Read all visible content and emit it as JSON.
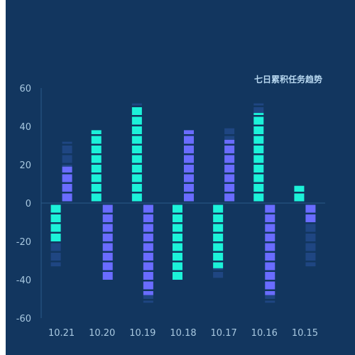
{
  "chart_data": {
    "type": "bar",
    "title": "七日累积任务趋势",
    "xlabel": "",
    "ylabel": "",
    "ylim": [
      -60,
      60
    ],
    "yticks": [
      60,
      40,
      20,
      0,
      -20,
      -40,
      -60
    ],
    "categories": [
      "10.21",
      "10.20",
      "10.19",
      "10.18",
      "10.17",
      "10.16",
      "10.15"
    ],
    "series": [
      {
        "color": "#1cf2d9",
        "values": [
          -20,
          38,
          50,
          -40,
          -34,
          47,
          9
        ],
        "track": [
          -33,
          38,
          52,
          -40,
          -39,
          52,
          9
        ]
      },
      {
        "color": "#6a6cff",
        "values": [
          19,
          -40,
          -48,
          38,
          33,
          -48,
          -10
        ],
        "track": [
          32,
          -40,
          -52,
          38,
          39,
          -52,
          -33
        ]
      }
    ],
    "track_color": "#1f4682",
    "grid": false,
    "legend": "none"
  }
}
